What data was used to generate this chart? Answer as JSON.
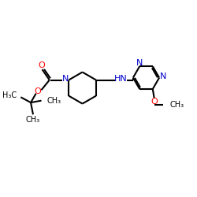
{
  "bg": "#ffffff",
  "bc": "#000000",
  "nc": "#0000cd",
  "oc": "#ff0000",
  "lw": 1.5,
  "fsa": 8.0,
  "fsg": 7.0,
  "figsize": [
    2.5,
    2.5
  ],
  "dpi": 100,
  "xlim": [
    0,
    10
  ],
  "ylim": [
    0,
    10
  ]
}
